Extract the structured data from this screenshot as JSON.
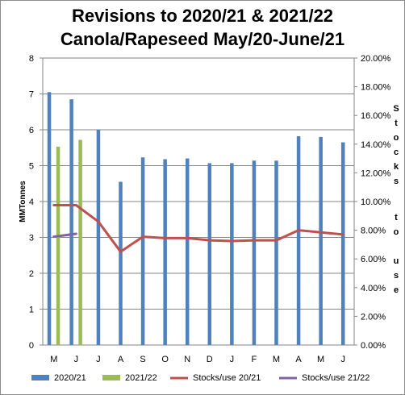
{
  "colors": {
    "series_2020_21": "#4f81bd",
    "series_2021_22": "#9bbb59",
    "stocks_use_20_21": "#c0504d",
    "stocks_use_21_22": "#8064a2",
    "gridline": "#868686",
    "axis": "#868686"
  },
  "chart_data": {
    "type": "bar",
    "title": [
      "Revisions to 2020/21 & 2021/22",
      "Canola/Rapeseed May/20-June/21"
    ],
    "categories": [
      "M",
      "J",
      "J",
      "A",
      "S",
      "O",
      "N",
      "D",
      "J",
      "F",
      "M",
      "A",
      "M",
      "J"
    ],
    "ylabel": "MMTonnes",
    "y2label": "Stocks to use",
    "ylim": [
      0,
      8
    ],
    "yticks": [
      "0",
      "1",
      "2",
      "3",
      "4",
      "5",
      "6",
      "7",
      "8"
    ],
    "y2lim": [
      0,
      20
    ],
    "y2ticks": [
      "0.00%",
      "2.00%",
      "4.00%",
      "6.00%",
      "8.00%",
      "10.00%",
      "12.00%",
      "14.00%",
      "16.00%",
      "18.00%",
      "20.00%"
    ],
    "grid": true,
    "legend_position": "bottom",
    "series": [
      {
        "name": "2020/21",
        "kind": "bar",
        "axis": "left",
        "values": [
          7.05,
          6.85,
          6.0,
          4.55,
          5.23,
          5.18,
          5.2,
          5.07,
          5.07,
          5.14,
          5.14,
          5.82,
          5.8,
          5.65
        ]
      },
      {
        "name": "2021/22",
        "kind": "bar",
        "axis": "left",
        "values": [
          5.53,
          5.72,
          null,
          null,
          null,
          null,
          null,
          null,
          null,
          null,
          null,
          null,
          null,
          null
        ]
      },
      {
        "name": "Stocks/use 20/21",
        "kind": "line",
        "axis": "right",
        "values": [
          9.75,
          9.75,
          8.6,
          6.5,
          7.55,
          7.45,
          7.45,
          7.3,
          7.25,
          7.3,
          7.3,
          8.0,
          7.85,
          7.7
        ]
      },
      {
        "name": "Stocks/use 21/22",
        "kind": "line",
        "axis": "right",
        "values": [
          7.55,
          7.75,
          null,
          null,
          null,
          null,
          null,
          null,
          null,
          null,
          null,
          null,
          null,
          null
        ]
      }
    ]
  }
}
